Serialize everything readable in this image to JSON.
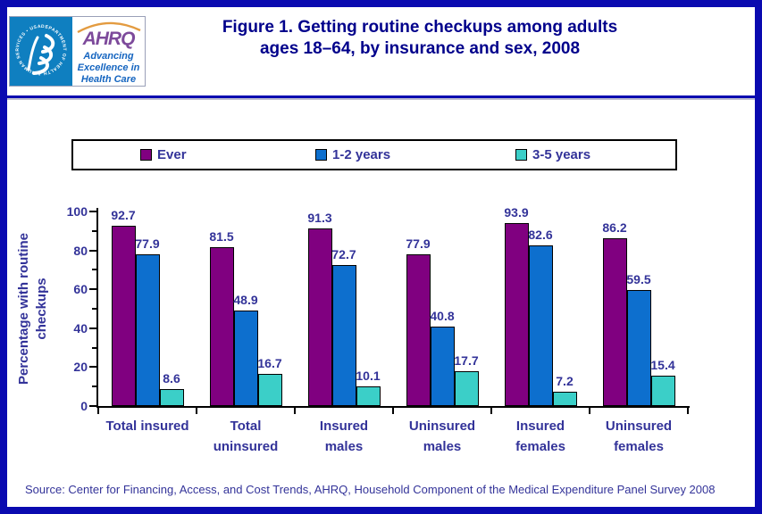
{
  "header": {
    "title": "Figure 1. Getting routine checkups among adults\nages 18–64, by insurance and sex, 2008",
    "logo": {
      "acronym": "AHRQ",
      "tagline": "Advancing\nExcellence in\nHealth Care",
      "seal_text": "DEPARTMENT OF HEALTH & HUMAN SERVICES • USA"
    }
  },
  "chart_data": {
    "type": "bar",
    "title": "Figure 1. Getting routine checkups among adults ages 18–64, by insurance and sex, 2008",
    "categories": [
      "Total insured",
      "Total uninsured",
      "Insured males",
      "Uninsured males",
      "Insured females",
      "Uninsured females"
    ],
    "category_display": [
      "Total insured",
      "Total\nuninsured",
      "Insured\nmales",
      "Uninsured\nmales",
      "Insured\nfemales",
      "Uninsured\nfemales"
    ],
    "series": [
      {
        "name": "Ever",
        "color": "#800080",
        "values": [
          92.7,
          81.5,
          91.3,
          77.9,
          93.9,
          86.2
        ]
      },
      {
        "name": "1-2 years",
        "color": "#0d6fce",
        "values": [
          77.9,
          48.9,
          72.7,
          40.8,
          82.6,
          59.5
        ]
      },
      {
        "name": "3-5 years",
        "color": "#3bcfc8",
        "values": [
          8.6,
          16.7,
          10.1,
          17.7,
          7.2,
          15.4
        ]
      }
    ],
    "xlabel": "",
    "ylabel": "Percentage with routine\ncheckups",
    "ylim": [
      0,
      100
    ],
    "yticks": [
      0,
      20,
      40,
      60,
      80,
      100
    ],
    "minor_yticks": [
      10,
      30,
      50,
      70,
      90
    ],
    "grid": false,
    "legend_position": "top"
  },
  "source_note": "Source: Center for Financing, Access, and Cost Trends, AHRQ, Household Component of the Medical Expenditure Panel Survey 2008",
  "colors": {
    "frame": "#0a0ab0",
    "title_text": "#00008B",
    "label_text": "#333399",
    "bar_border": "#000000",
    "seal_background": "#0f7fc0",
    "ahrq_purple": "#7d4a9b",
    "tagline_blue": "#1565c0",
    "arc_orange": "#e39b40"
  }
}
